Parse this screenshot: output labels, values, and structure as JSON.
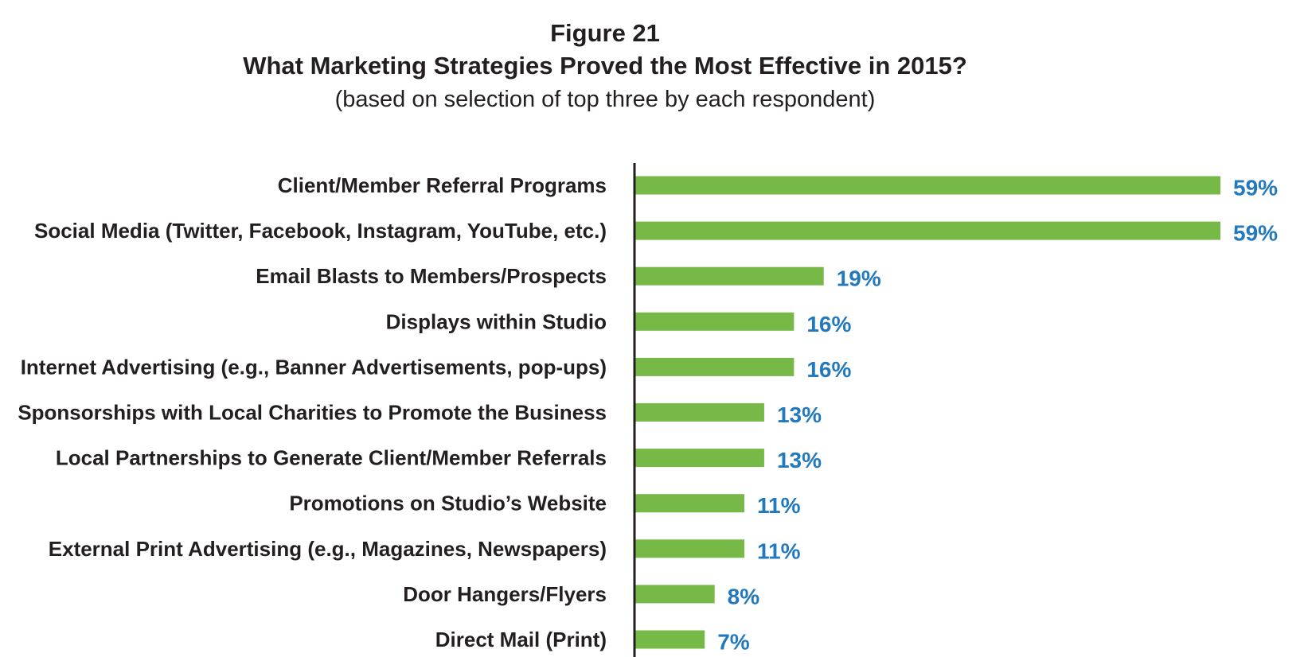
{
  "figure_label": "Figure 21",
  "title": "What Marketing Strategies Proved the Most Effective in 2015?",
  "subtitle": "(based on selection of top three by each respondent)",
  "colors": {
    "bar": "#76b947",
    "value_label": "#2379be",
    "axis": "#231f20",
    "text": "#231f20"
  },
  "chart_data": {
    "type": "bar",
    "orientation": "horizontal",
    "title": "What Marketing Strategies Proved the Most Effective in 2015?",
    "subtitle": "(based on selection of top three by each respondent)",
    "xlabel": "",
    "ylabel": "",
    "unit": "%",
    "xlim": [
      0,
      59
    ],
    "grid": false,
    "legend": "none",
    "categories": [
      "Client/Member Referral Programs",
      "Social Media (Twitter, Facebook, Instagram, YouTube, etc.)",
      "Email Blasts to Members/Prospects",
      "Displays within Studio",
      "Internet Advertising (e.g., Banner Advertisements, pop-ups)",
      "Sponsorships with Local Charities to Promote the Business",
      "Local Partnerships to Generate Client/Member Referrals",
      "Promotions on Studio’s Website",
      "External Print Advertising (e.g., Magazines, Newspapers)",
      "Door Hangers/Flyers",
      "Direct Mail (Print)"
    ],
    "values": [
      59,
      59,
      19,
      16,
      16,
      13,
      13,
      11,
      11,
      8,
      7
    ],
    "data_labels": [
      "59%",
      "59%",
      "19%",
      "16%",
      "16%",
      "13%",
      "13%",
      "11%",
      "11%",
      "8%",
      "7%"
    ]
  }
}
